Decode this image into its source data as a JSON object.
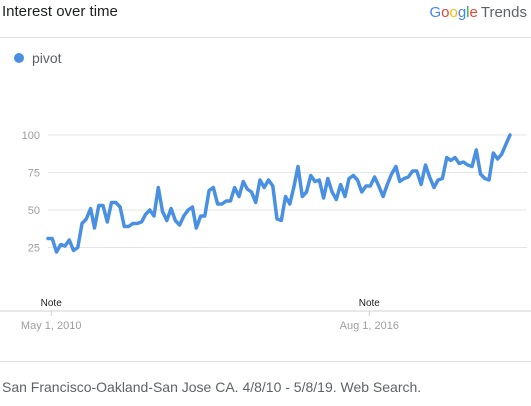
{
  "header": {
    "title": "Interest over time",
    "brand_letters": [
      {
        "ch": "G",
        "color": "#4285F4"
      },
      {
        "ch": "o",
        "color": "#EA4335"
      },
      {
        "ch": "o",
        "color": "#FBBC05"
      },
      {
        "ch": "g",
        "color": "#4285F4"
      },
      {
        "ch": "l",
        "color": "#34A853"
      },
      {
        "ch": "e",
        "color": "#EA4335"
      }
    ],
    "brand_suffix": "Trends"
  },
  "footer": {
    "text": "San Francisco-Oakland-San Jose CA. 4/8/10 - 5/8/19. Web Search."
  },
  "chart_data": {
    "type": "line",
    "grid": true,
    "legend_position": "top-left",
    "ylim": [
      0,
      100
    ],
    "yticks": [
      25,
      50,
      75,
      100
    ],
    "xlim": [
      "2010-04-08",
      "2019-05-08"
    ],
    "xticks": [
      {
        "date": "2010-05-01",
        "label": "May 1, 2010"
      },
      {
        "date": "2016-08-01",
        "label": "Aug 1, 2016"
      }
    ],
    "notes": [
      {
        "date": "2010-05-01",
        "label": "Note"
      },
      {
        "date": "2016-08-01",
        "label": "Note"
      }
    ],
    "series": [
      {
        "name": "pivot",
        "color": "#4A90E2",
        "points": [
          [
            "2010-04-08",
            31
          ],
          [
            "2010-05-08",
            31
          ],
          [
            "2010-06-08",
            22
          ],
          [
            "2010-07-08",
            27
          ],
          [
            "2010-08-08",
            26
          ],
          [
            "2010-09-08",
            30
          ],
          [
            "2010-10-08",
            23
          ],
          [
            "2010-11-08",
            25
          ],
          [
            "2010-12-08",
            41
          ],
          [
            "2011-01-08",
            44
          ],
          [
            "2011-02-08",
            51
          ],
          [
            "2011-03-08",
            38
          ],
          [
            "2011-04-08",
            53
          ],
          [
            "2011-05-08",
            53
          ],
          [
            "2011-06-08",
            42
          ],
          [
            "2011-07-08",
            55
          ],
          [
            "2011-08-08",
            55
          ],
          [
            "2011-09-08",
            52
          ],
          [
            "2011-10-08",
            39
          ],
          [
            "2011-11-08",
            39
          ],
          [
            "2011-12-08",
            41
          ],
          [
            "2012-01-08",
            41
          ],
          [
            "2012-02-08",
            42
          ],
          [
            "2012-03-08",
            47
          ],
          [
            "2012-04-08",
            50
          ],
          [
            "2012-05-08",
            46
          ],
          [
            "2012-06-08",
            65
          ],
          [
            "2012-07-08",
            49
          ],
          [
            "2012-08-08",
            43
          ],
          [
            "2012-09-08",
            51
          ],
          [
            "2012-10-08",
            43
          ],
          [
            "2012-11-08",
            40
          ],
          [
            "2012-12-08",
            46
          ],
          [
            "2013-01-08",
            50
          ],
          [
            "2013-02-08",
            52
          ],
          [
            "2013-03-08",
            38
          ],
          [
            "2013-04-08",
            46
          ],
          [
            "2013-05-08",
            46
          ],
          [
            "2013-06-08",
            63
          ],
          [
            "2013-07-08",
            65
          ],
          [
            "2013-08-08",
            54
          ],
          [
            "2013-09-08",
            54
          ],
          [
            "2013-10-08",
            56
          ],
          [
            "2013-11-08",
            56
          ],
          [
            "2013-12-08",
            65
          ],
          [
            "2014-01-08",
            59
          ],
          [
            "2014-02-08",
            69
          ],
          [
            "2014-03-08",
            64
          ],
          [
            "2014-04-08",
            62
          ],
          [
            "2014-05-08",
            55
          ],
          [
            "2014-06-08",
            70
          ],
          [
            "2014-07-08",
            65
          ],
          [
            "2014-08-08",
            70
          ],
          [
            "2014-09-08",
            66
          ],
          [
            "2014-10-08",
            44
          ],
          [
            "2014-11-08",
            43
          ],
          [
            "2014-12-08",
            59
          ],
          [
            "2015-01-08",
            54
          ],
          [
            "2015-02-08",
            66
          ],
          [
            "2015-03-08",
            79
          ],
          [
            "2015-04-08",
            59
          ],
          [
            "2015-05-08",
            62
          ],
          [
            "2015-06-08",
            73
          ],
          [
            "2015-07-08",
            69
          ],
          [
            "2015-08-08",
            70
          ],
          [
            "2015-09-08",
            58
          ],
          [
            "2015-10-08",
            71
          ],
          [
            "2015-11-08",
            62
          ],
          [
            "2015-12-08",
            57
          ],
          [
            "2016-01-08",
            67
          ],
          [
            "2016-02-08",
            59
          ],
          [
            "2016-03-08",
            71
          ],
          [
            "2016-04-08",
            73
          ],
          [
            "2016-05-08",
            70
          ],
          [
            "2016-06-08",
            62
          ],
          [
            "2016-07-08",
            66
          ],
          [
            "2016-08-08",
            66
          ],
          [
            "2016-09-08",
            72
          ],
          [
            "2016-10-08",
            66
          ],
          [
            "2016-11-08",
            59
          ],
          [
            "2016-12-08",
            67
          ],
          [
            "2017-01-08",
            74
          ],
          [
            "2017-02-08",
            79
          ],
          [
            "2017-03-08",
            69
          ],
          [
            "2017-04-08",
            71
          ],
          [
            "2017-05-08",
            72
          ],
          [
            "2017-06-08",
            76
          ],
          [
            "2017-07-08",
            76
          ],
          [
            "2017-08-08",
            67
          ],
          [
            "2017-09-08",
            80
          ],
          [
            "2017-10-08",
            72
          ],
          [
            "2017-11-08",
            65
          ],
          [
            "2017-12-08",
            70
          ],
          [
            "2018-01-08",
            71
          ],
          [
            "2018-02-08",
            85
          ],
          [
            "2018-03-08",
            83
          ],
          [
            "2018-04-08",
            85
          ],
          [
            "2018-05-08",
            81
          ],
          [
            "2018-06-08",
            82
          ],
          [
            "2018-07-08",
            80
          ],
          [
            "2018-08-08",
            79
          ],
          [
            "2018-09-08",
            90
          ],
          [
            "2018-10-08",
            74
          ],
          [
            "2018-11-08",
            71
          ],
          [
            "2018-12-08",
            70
          ],
          [
            "2019-01-08",
            88
          ],
          [
            "2019-02-08",
            84
          ],
          [
            "2019-03-08",
            87
          ],
          [
            "2019-05-08",
            100
          ]
        ]
      }
    ]
  }
}
